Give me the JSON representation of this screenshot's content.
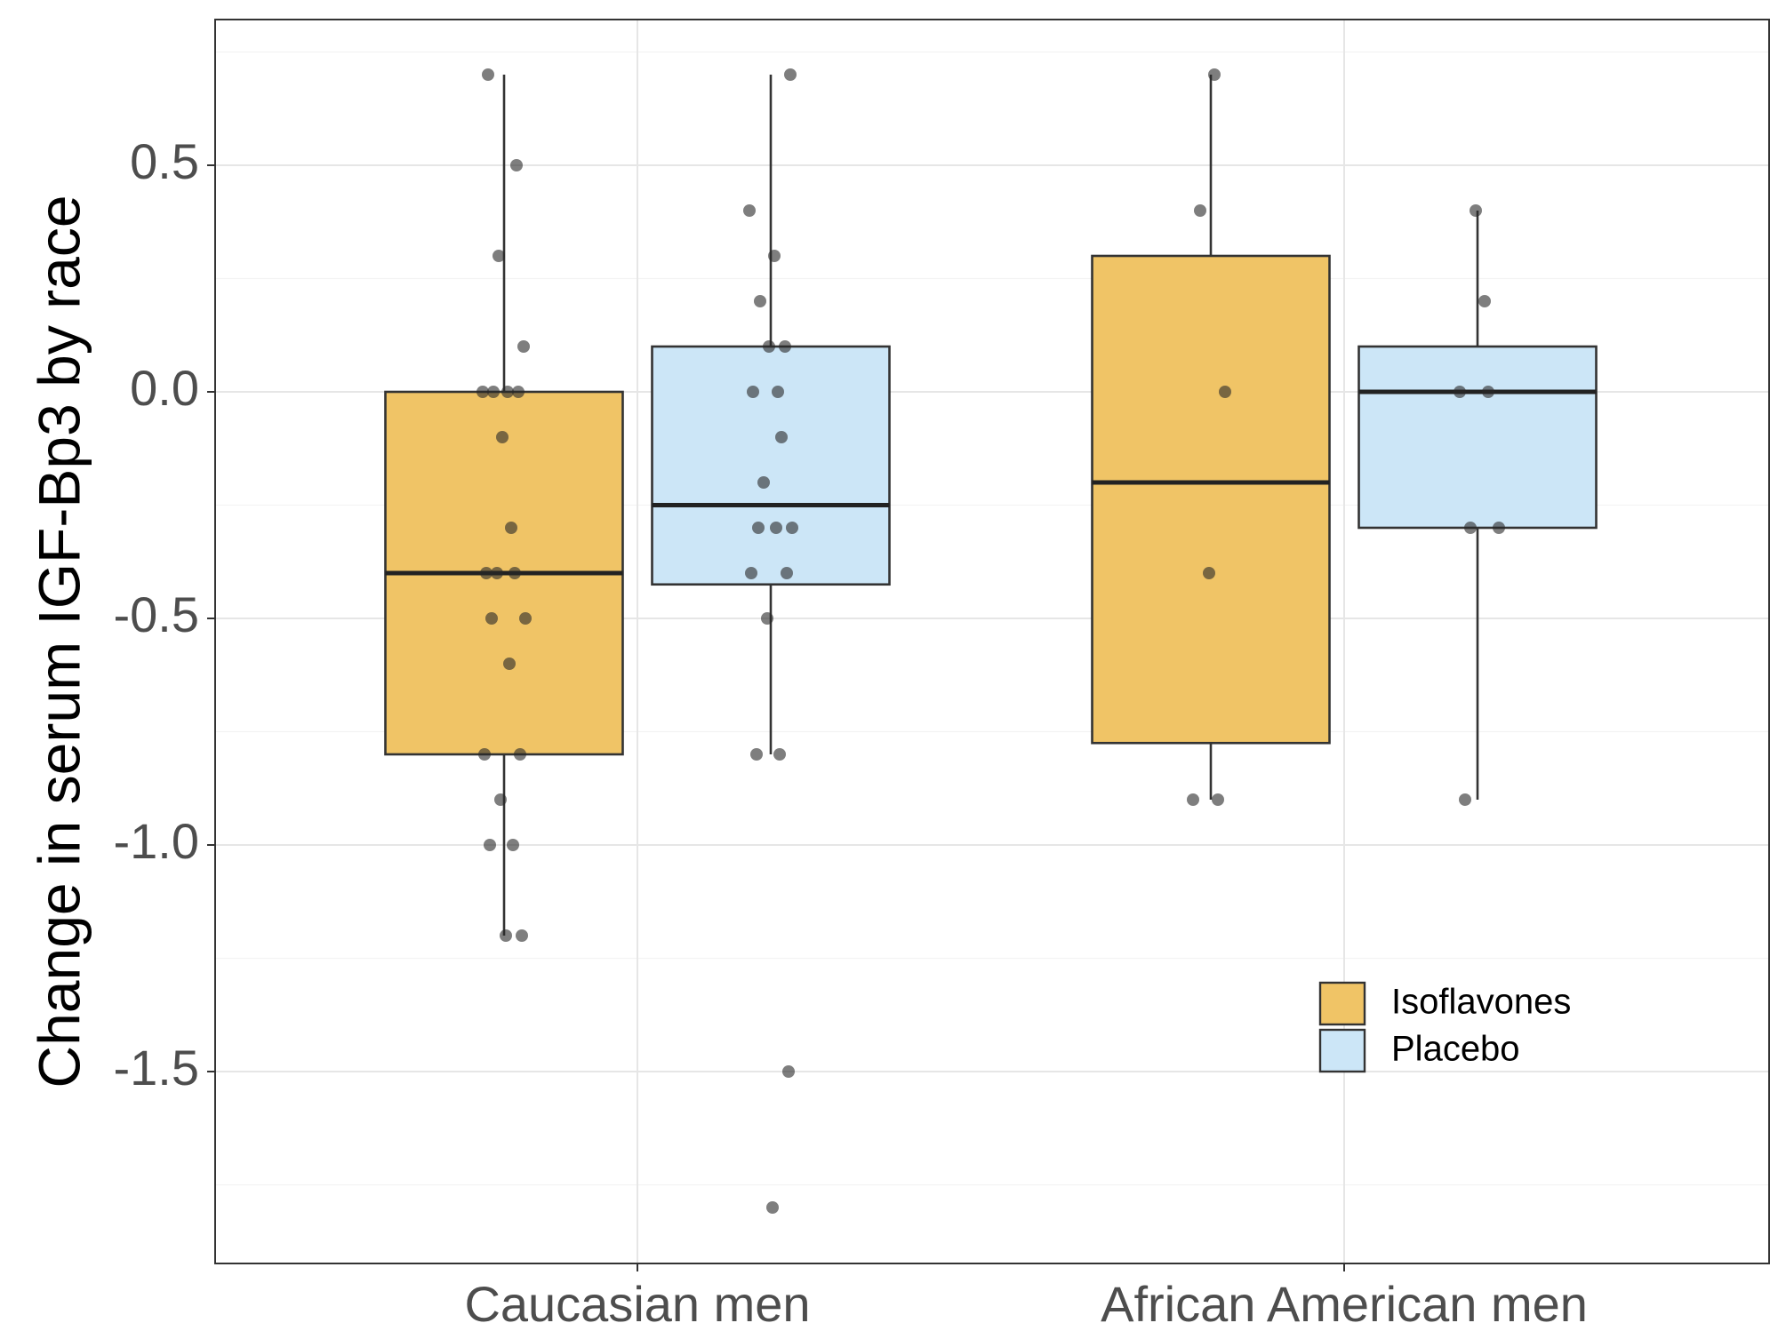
{
  "chart_data": {
    "type": "boxplot",
    "title": "",
    "xlabel": "",
    "ylabel": "Change in serum IGF-Bp3 by race",
    "ylim": [
      -1.92,
      0.82
    ],
    "y_ticks": [
      0.5,
      0.0,
      -0.5,
      -1.0,
      -1.5
    ],
    "y_tick_labels": [
      "0.5",
      "0.0",
      "-0.5",
      "-1.0",
      "-1.5"
    ],
    "grid": true,
    "legend_position": "bottom-right",
    "categories": [
      "Caucasian men",
      "African American men"
    ],
    "series": [
      {
        "name": "Isoflavones",
        "color": "#f0c466",
        "boxes": [
          {
            "whisker_low": -1.2,
            "q1": -0.8,
            "median": -0.4,
            "q3": 0.0,
            "whisker_high": 0.7
          },
          {
            "whisker_low": -0.9,
            "q1": -0.775,
            "median": -0.2,
            "q3": 0.3,
            "whisker_high": 0.7
          }
        ],
        "points": [
          [
            0.7,
            0.5,
            0.3,
            0.1,
            0.0,
            0.0,
            0.0,
            0.0,
            -0.1,
            -0.3,
            -0.4,
            -0.4,
            -0.4,
            -0.5,
            -0.5,
            -0.6,
            -0.8,
            -0.8,
            -0.9,
            -1.0,
            -1.0,
            -1.2,
            -1.2
          ],
          [
            0.7,
            0.4,
            0.0,
            -0.4,
            -0.9,
            -0.9
          ]
        ]
      },
      {
        "name": "Placebo",
        "color": "#cce6f7",
        "boxes": [
          {
            "whisker_low": -0.8,
            "q1": -0.425,
            "median": -0.25,
            "q3": 0.1,
            "whisker_high": 0.7
          },
          {
            "whisker_low": -0.9,
            "q1": -0.3,
            "median": 0.0,
            "q3": 0.1,
            "whisker_high": 0.4
          }
        ],
        "points": [
          [
            0.7,
            0.4,
            0.3,
            0.2,
            0.1,
            0.1,
            0.0,
            0.0,
            -0.1,
            -0.2,
            -0.3,
            -0.3,
            -0.3,
            -0.4,
            -0.4,
            -0.5,
            -0.8,
            -0.8,
            -1.5,
            -1.8
          ],
          [
            0.4,
            0.2,
            0.0,
            0.0,
            -0.3,
            -0.3,
            -0.9
          ]
        ]
      }
    ]
  }
}
